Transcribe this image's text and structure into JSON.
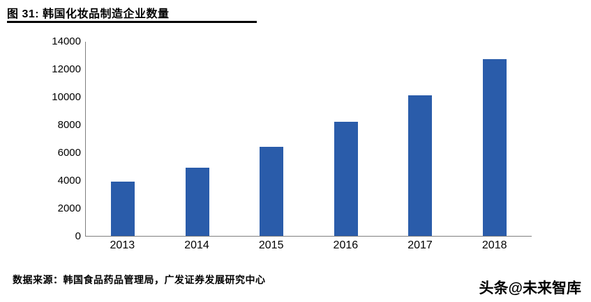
{
  "figure": {
    "title": "图 31:  韩国化妆品制造企业数量",
    "source": "数据来源：韩国食品药品管理局，广发证券发展研究中心",
    "watermark": "头条@未来智库"
  },
  "colors": {
    "bar": "#2a5caa",
    "axis": "#7f7f7f",
    "title_underline": "#000000"
  },
  "chart_data": {
    "type": "bar",
    "title": "韩国化妆品制造企业数量",
    "categories": [
      "2013",
      "2014",
      "2015",
      "2016",
      "2017",
      "2018"
    ],
    "values": [
      3900,
      4900,
      6400,
      8200,
      10100,
      12700
    ],
    "xlabel": "",
    "ylabel": "",
    "ylim": [
      0,
      14000
    ],
    "ytick_step": 2000,
    "grid": false,
    "legend": null
  }
}
